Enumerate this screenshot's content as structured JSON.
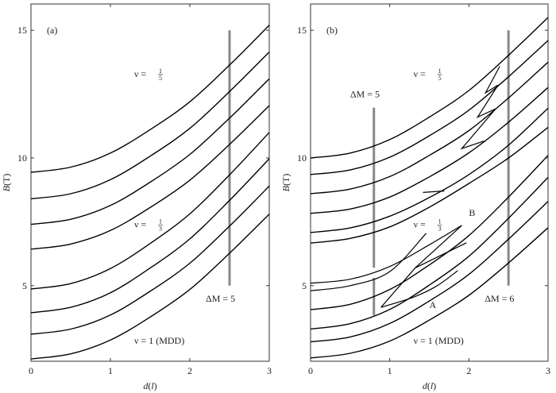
{
  "chart_data": [
    {
      "type": "line",
      "panel_label": "(a)",
      "xlabel": {
        "var": "d",
        "paren_open": "(",
        "arg": "l",
        "paren_close": ")"
      },
      "ylabel": {
        "var": "B",
        "unit": "(T)"
      },
      "xlim": [
        0,
        3
      ],
      "ylim": [
        2.04,
        16.03
      ],
      "xticks": [
        "0",
        "1",
        "2",
        "3"
      ],
      "yticks": [
        "5",
        "10",
        "15"
      ],
      "x": [
        0,
        0.5,
        1,
        1.5,
        2,
        2.5,
        3
      ],
      "series": [
        {
          "name": "level-1",
          "values": [
            2.13,
            2.33,
            2.87,
            3.77,
            4.85,
            6.27,
            7.8
          ]
        },
        {
          "name": "level-2",
          "values": [
            3.1,
            3.3,
            3.85,
            4.78,
            5.88,
            7.33,
            8.9
          ]
        },
        {
          "name": "level-3",
          "values": [
            3.94,
            4.15,
            4.72,
            5.69,
            6.83,
            8.34,
            9.97
          ]
        },
        {
          "name": "level-4",
          "values": [
            4.87,
            5.08,
            5.67,
            6.65,
            7.81,
            9.34,
            11.0
          ]
        },
        {
          "name": "level-5",
          "values": [
            6.43,
            6.63,
            7.16,
            8.06,
            9.13,
            10.53,
            12.05
          ]
        },
        {
          "name": "level-6",
          "values": [
            7.4,
            7.6,
            8.14,
            9.05,
            10.14,
            11.56,
            13.1
          ]
        },
        {
          "name": "level-7",
          "values": [
            8.4,
            8.6,
            9.15,
            10.07,
            11.16,
            12.6,
            14.15
          ]
        },
        {
          "name": "level-8",
          "values": [
            9.44,
            9.64,
            10.19,
            11.11,
            12.2,
            13.64,
            15.2
          ]
        }
      ],
      "lens_curves": [],
      "segments": [],
      "grey_bars": [
        {
          "d": 2.5,
          "from": 5,
          "to": 15
        }
      ],
      "annotations": [
        {
          "kind": "frac",
          "prefix": "ν = ",
          "num": "1",
          "den": "5",
          "at": [
            1.3,
            13.3
          ]
        },
        {
          "kind": "frac",
          "prefix": "ν = ",
          "num": "1",
          "den": "3",
          "at": [
            1.3,
            7.4
          ]
        },
        {
          "kind": "text",
          "text": "ΔM = 5",
          "at": [
            2.2,
            4.5
          ]
        },
        {
          "kind": "text",
          "text": "ν = 1 (MDD)",
          "at": [
            1.3,
            2.85
          ]
        }
      ]
    },
    {
      "type": "line",
      "panel_label": "(b)",
      "xlabel": {
        "var": "d",
        "paren_open": "(",
        "arg": "l",
        "paren_close": ")"
      },
      "ylabel": {
        "var": "B",
        "unit": "(T)"
      },
      "xlim": [
        0,
        3
      ],
      "ylim": [
        2.04,
        16.03
      ],
      "xticks": [
        "0",
        "1",
        "2",
        "3"
      ],
      "yticks": [
        "5",
        "10",
        "15"
      ],
      "x": [
        0,
        0.5,
        1,
        1.5,
        2,
        2.5,
        3
      ],
      "series": [
        {
          "name": "level-1",
          "values": [
            2.17,
            2.35,
            2.83,
            3.65,
            4.62,
            5.89,
            7.27
          ]
        },
        {
          "name": "level-2",
          "values": [
            2.8,
            2.99,
            3.52,
            4.4,
            5.44,
            6.82,
            8.3
          ]
        },
        {
          "name": "level-3",
          "values": [
            3.3,
            3.51,
            4.07,
            5.02,
            6.15,
            7.64,
            9.24
          ]
        },
        {
          "name": "level-4",
          "values": [
            4.06,
            4.27,
            4.85,
            5.81,
            6.96,
            8.47,
            10.1
          ]
        },
        {
          "name": "level-5",
          "values": [
            6.67,
            6.85,
            7.3,
            8.07,
            9.0,
            10.0,
            11.2
          ]
        },
        {
          "name": "level-6",
          "values": [
            7.08,
            7.26,
            7.72,
            8.45,
            9.35,
            10.5,
            11.95
          ]
        },
        {
          "name": "level-7",
          "values": [
            7.83,
            8.0,
            8.47,
            9.26,
            10.2,
            11.4,
            12.76
          ]
        },
        {
          "name": "level-8",
          "values": [
            8.6,
            8.78,
            9.27,
            10.1,
            11.07,
            12.35,
            13.75
          ]
        },
        {
          "name": "level-9",
          "values": [
            9.35,
            9.53,
            10.03,
            10.87,
            11.87,
            13.18,
            14.6
          ]
        },
        {
          "name": "level-10",
          "values": [
            10.0,
            10.19,
            10.72,
            11.6,
            12.64,
            14.02,
            15.5
          ]
        }
      ],
      "lens_curves": [
        [
          [
            0,
            4.8
          ],
          [
            0.5,
            5.0
          ],
          [
            1.0,
            5.55
          ],
          [
            1.46,
            7.05
          ]
        ],
        [
          [
            0,
            5.1
          ],
          [
            0.5,
            5.25
          ],
          [
            1.0,
            5.75
          ],
          [
            1.5,
            6.6
          ],
          [
            1.91,
            7.36
          ]
        ],
        [
          [
            0.89,
            4.15
          ],
          [
            1.3,
            4.55
          ],
          [
            1.6,
            5.0
          ],
          [
            1.86,
            5.59
          ]
        ]
      ],
      "segments": [
        [
          [
            2.39,
            13.59
          ],
          [
            2.21,
            12.55
          ],
          [
            2.37,
            12.86
          ],
          [
            2.11,
            11.6
          ],
          [
            2.34,
            11.93
          ],
          [
            1.91,
            10.37
          ],
          [
            2.19,
            10.66
          ]
        ],
        [
          [
            1.42,
            8.65
          ],
          [
            1.69,
            8.71
          ]
        ],
        [
          [
            0.89,
            4.15
          ],
          [
            1.32,
            5.69
          ],
          [
            1.91,
            7.36
          ]
        ],
        [
          [
            1.32,
            5.69
          ],
          [
            1.97,
            6.68
          ]
        ]
      ],
      "grey_bars": [
        {
          "d": 0.8,
          "from": 5.7,
          "to": 11.97
        },
        {
          "d": 0.8,
          "from": 3.84,
          "to": 5.3
        },
        {
          "d": 2.5,
          "from": 5,
          "to": 15
        }
      ],
      "annotations": [
        {
          "kind": "frac",
          "prefix": "ν = ",
          "num": "1",
          "den": "5",
          "at": [
            1.3,
            13.3
          ]
        },
        {
          "kind": "text",
          "text": "ΔM = 5",
          "at": [
            0.5,
            12.5
          ]
        },
        {
          "kind": "frac",
          "prefix": "ν = ",
          "num": "1",
          "den": "3",
          "at": [
            1.3,
            7.4
          ]
        },
        {
          "kind": "text",
          "text": "B",
          "at": [
            2.0,
            7.85
          ]
        },
        {
          "kind": "text",
          "text": "A",
          "at": [
            1.5,
            4.25
          ]
        },
        {
          "kind": "text",
          "text": "ΔM = 6",
          "at": [
            2.2,
            4.5
          ]
        },
        {
          "kind": "text",
          "text": "ν = 1 (MDD)",
          "at": [
            1.3,
            2.85
          ]
        }
      ]
    }
  ]
}
